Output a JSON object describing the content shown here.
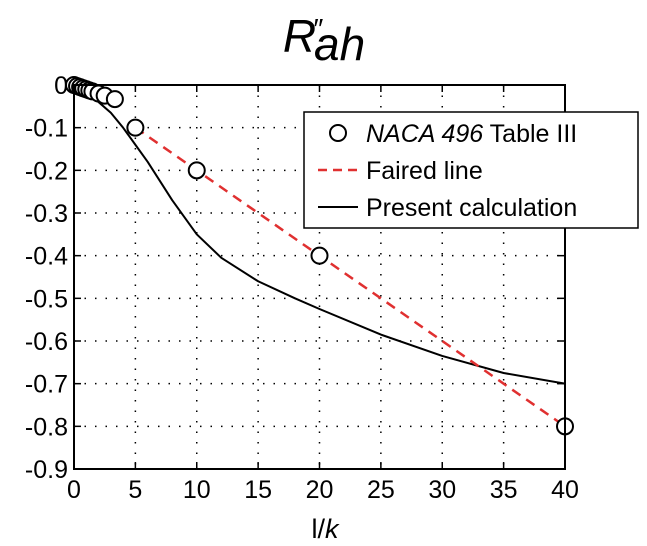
{
  "chart_data": {
    "type": "line",
    "title": "R″ah",
    "title_parts": {
      "main": "R",
      "sup": "″",
      "sub": "ah"
    },
    "xlabel": "l/k",
    "xlabel_parts": {
      "a": "l/",
      "b": "k"
    },
    "ylabel": "",
    "xlim": [
      0,
      40
    ],
    "ylim": [
      -0.9,
      0
    ],
    "xticks": [
      0,
      5,
      10,
      15,
      20,
      25,
      30,
      35,
      40
    ],
    "yticks": [
      0,
      -0.1,
      -0.2,
      -0.3,
      -0.4,
      -0.5,
      -0.6,
      -0.7,
      -0.8,
      -0.9
    ],
    "xtick_labels": [
      "0",
      "5",
      "10",
      "15",
      "20",
      "25",
      "30",
      "35",
      "40"
    ],
    "ytick_labels": [
      "0",
      "-0.1",
      "-0.2",
      "-0.3",
      "-0.4",
      "-0.5",
      "-0.6",
      "-0.7",
      "-0.8",
      "-0.9"
    ],
    "grid": "dotted",
    "legend_position": "top-right",
    "series": [
      {
        "name": "NACA 496 Table III",
        "name_parts": {
          "italic": "NACA 496",
          "rest": " Table III"
        },
        "kind": "scatter",
        "marker": "open-circle",
        "color": "#000000",
        "x": [
          0,
          0.25,
          0.5,
          0.75,
          1.0,
          1.25,
          1.5,
          2.0,
          2.5,
          3.33,
          5,
          10,
          20,
          40
        ],
        "y": [
          0,
          -0.0025,
          -0.005,
          -0.0075,
          -0.01,
          -0.0125,
          -0.015,
          -0.02,
          -0.025,
          -0.033,
          -0.1,
          -0.2,
          -0.4,
          -0.8
        ]
      },
      {
        "name": "Faired line",
        "kind": "line",
        "style": "dashed",
        "color": "#e03030",
        "x": [
          5,
          40
        ],
        "y": [
          -0.1,
          -0.8
        ]
      },
      {
        "name": "Present calculation",
        "kind": "line",
        "style": "solid",
        "color": "#000000",
        "x": [
          0,
          1,
          2,
          3,
          4,
          5,
          6,
          8,
          10,
          12,
          15,
          18,
          20,
          25,
          30,
          35,
          40
        ],
        "y": [
          0,
          -0.02,
          -0.04,
          -0.065,
          -0.1,
          -0.14,
          -0.18,
          -0.27,
          -0.35,
          -0.405,
          -0.46,
          -0.5,
          -0.525,
          -0.585,
          -0.635,
          -0.675,
          -0.7
        ]
      }
    ]
  }
}
